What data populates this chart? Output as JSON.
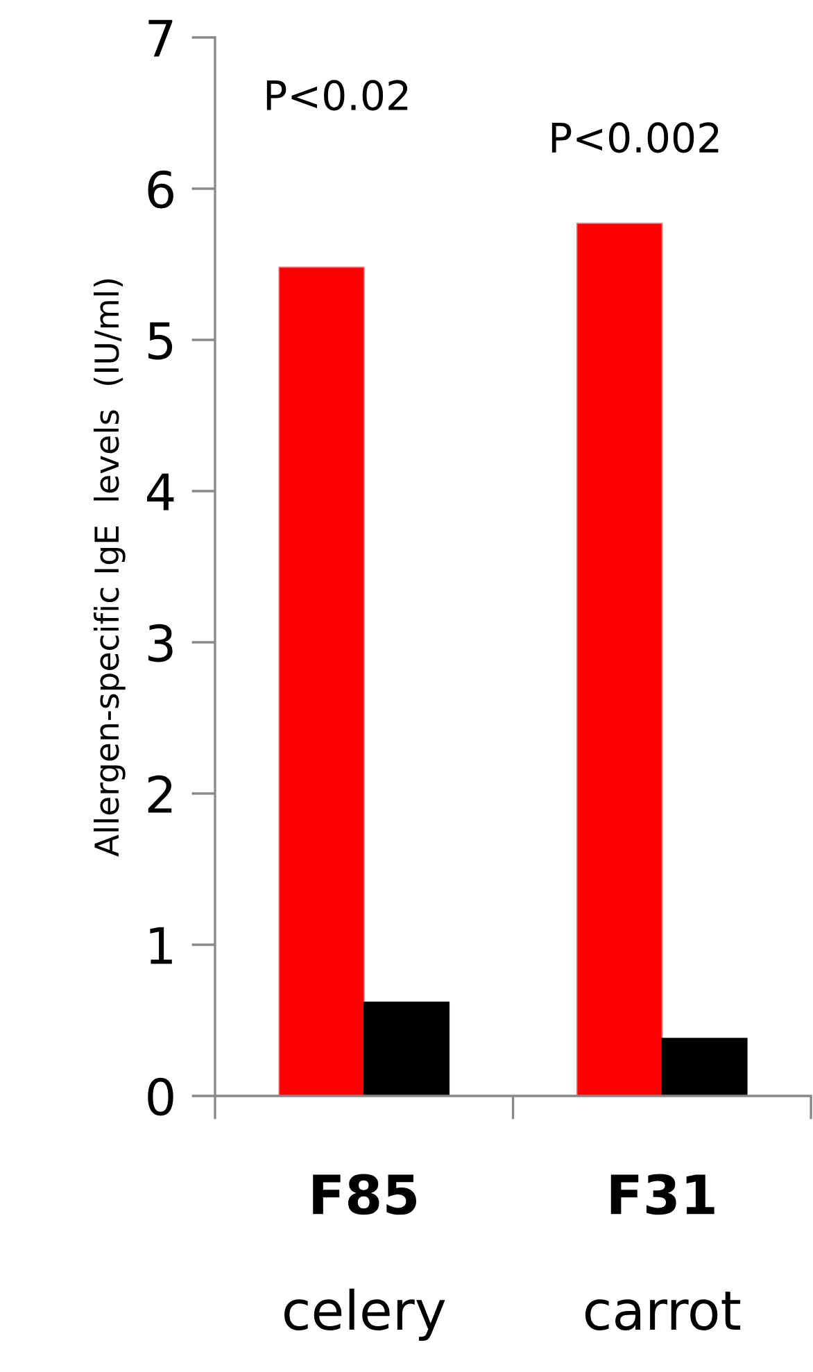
{
  "chart_data": {
    "type": "bar",
    "ylabel": "Allergen-specific IgE  levels  (IU/ml)",
    "categories": [
      "F85",
      "F31"
    ],
    "series": [
      {
        "color": "#ff0000",
        "values": [
          5.48,
          5.77
        ]
      },
      {
        "color": "#000000",
        "values": [
          0.62,
          0.38
        ]
      }
    ],
    "ylim": [
      0,
      7
    ],
    "yticks": [
      0,
      1,
      2,
      3,
      4,
      5,
      6,
      7
    ],
    "grid": false,
    "legend": false,
    "annotations": [
      "P<0.02",
      "P<0.002",
      "celery",
      "carrot"
    ]
  }
}
